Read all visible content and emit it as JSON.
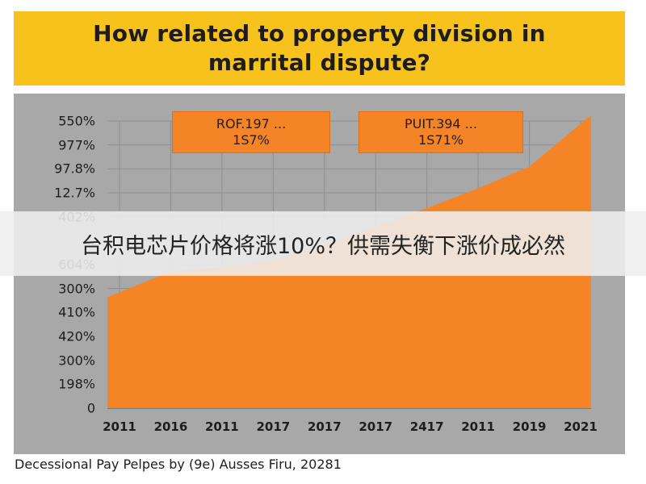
{
  "title_lines": [
    "How related to property division in",
    "marrital dispute?"
  ],
  "overlay_text": "台积电芯片价格将涨10%？供需失衡下涨价成必然",
  "caption": "Decessional Pay Pelpes by (9e) Ausses Firu, 20281",
  "colors": {
    "banner": "#f6c21b",
    "panel": "#a8a8a8",
    "area": "#f58426",
    "grid": "#8e8e8e"
  },
  "chart_data": {
    "type": "area",
    "title": "How related to property division in marrital dispute?",
    "xlabel": "",
    "ylabel": "",
    "x": [
      "2011",
      "2016",
      "2011",
      "2017",
      "2017",
      "2017",
      "2417",
      "2011",
      "2019",
      "2021"
    ],
    "y_tick_labels": [
      "550%",
      "977%",
      "97.8%",
      "12.7%",
      "402%",
      "…",
      "604%",
      "300%",
      "410%",
      "420%",
      "300%",
      "198%",
      "0"
    ],
    "series": [
      {
        "values": [
          5.6,
          6.9,
          7.1,
          7.5,
          8.2,
          9.2,
          10.1,
          11.1,
          12.2,
          14.8
        ]
      }
    ],
    "ylim": [
      0,
      14.5
    ],
    "grid": true,
    "annotations": [
      {
        "line1": "ROF.197 ...",
        "line2": "1S7%"
      },
      {
        "line1": "PUIT.394 ...",
        "line2": "1S71%"
      }
    ]
  }
}
